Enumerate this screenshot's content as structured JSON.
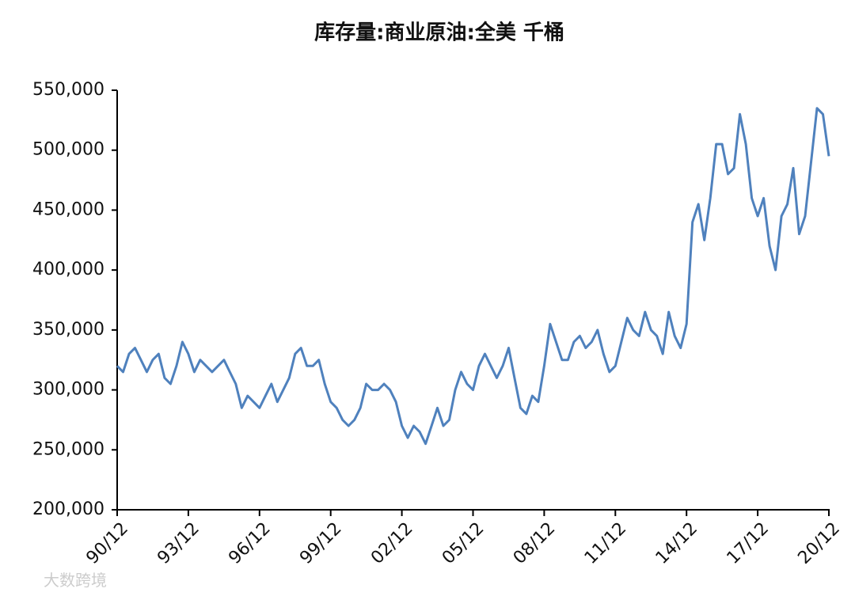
{
  "chart_data": {
    "type": "line",
    "title": "库存量:商业原油:全美 千桶",
    "watermark": "大数跨境",
    "x": [
      "90/12",
      "91/03",
      "91/06",
      "91/09",
      "91/12",
      "92/03",
      "92/06",
      "92/09",
      "92/12",
      "93/03",
      "93/06",
      "93/09",
      "93/12",
      "94/03",
      "94/06",
      "94/09",
      "94/12",
      "95/03",
      "95/06",
      "95/09",
      "95/12",
      "96/03",
      "96/06",
      "96/09",
      "96/12",
      "97/03",
      "97/06",
      "97/09",
      "97/12",
      "98/03",
      "98/06",
      "98/09",
      "98/12",
      "99/03",
      "99/06",
      "99/09",
      "99/12",
      "00/03",
      "00/06",
      "00/09",
      "00/12",
      "01/03",
      "01/06",
      "01/09",
      "01/12",
      "02/03",
      "02/06",
      "02/09",
      "02/12",
      "03/03",
      "03/06",
      "03/09",
      "03/12",
      "04/03",
      "04/06",
      "04/09",
      "04/12",
      "05/03",
      "05/06",
      "05/09",
      "05/12",
      "06/03",
      "06/06",
      "06/09",
      "06/12",
      "07/03",
      "07/06",
      "07/09",
      "07/12",
      "08/03",
      "08/06",
      "08/09",
      "08/12",
      "09/03",
      "09/06",
      "09/09",
      "09/12",
      "10/03",
      "10/06",
      "10/09",
      "10/12",
      "11/03",
      "11/06",
      "11/09",
      "11/12",
      "12/03",
      "12/06",
      "12/09",
      "12/12",
      "13/03",
      "13/06",
      "13/09",
      "13/12",
      "14/03",
      "14/06",
      "14/09",
      "14/12",
      "15/03",
      "15/06",
      "15/09",
      "15/12",
      "16/03",
      "16/06",
      "16/09",
      "16/12",
      "17/03",
      "17/06",
      "17/09",
      "17/12",
      "18/03",
      "18/06",
      "18/09",
      "18/12",
      "19/03",
      "19/06",
      "19/09",
      "19/12",
      "20/03",
      "20/06",
      "20/09",
      "20/12"
    ],
    "series": [
      {
        "name": "库存量:商业原油:全美",
        "color": "#4f81bd",
        "values": [
          320000,
          315000,
          330000,
          335000,
          325000,
          315000,
          325000,
          330000,
          310000,
          305000,
          320000,
          340000,
          330000,
          315000,
          325000,
          320000,
          315000,
          320000,
          325000,
          315000,
          305000,
          285000,
          295000,
          290000,
          285000,
          295000,
          305000,
          290000,
          300000,
          310000,
          330000,
          335000,
          320000,
          320000,
          325000,
          305000,
          290000,
          285000,
          275000,
          270000,
          275000,
          285000,
          305000,
          300000,
          300000,
          305000,
          300000,
          290000,
          270000,
          260000,
          270000,
          265000,
          255000,
          270000,
          285000,
          270000,
          275000,
          300000,
          315000,
          305000,
          300000,
          320000,
          330000,
          320000,
          310000,
          320000,
          335000,
          310000,
          285000,
          280000,
          295000,
          290000,
          320000,
          355000,
          340000,
          325000,
          325000,
          340000,
          345000,
          335000,
          340000,
          350000,
          330000,
          315000,
          320000,
          340000,
          360000,
          350000,
          345000,
          365000,
          350000,
          345000,
          330000,
          365000,
          345000,
          335000,
          355000,
          440000,
          455000,
          425000,
          460000,
          505000,
          505000,
          480000,
          485000,
          530000,
          505000,
          460000,
          445000,
          460000,
          420000,
          400000,
          445000,
          455000,
          485000,
          430000,
          445000,
          490000,
          535000,
          530000,
          495000
        ]
      }
    ],
    "ylim": [
      200000,
      550000
    ],
    "yticks": [
      {
        "value": 200000,
        "label": "200,000"
      },
      {
        "value": 250000,
        "label": "250,000"
      },
      {
        "value": 300000,
        "label": "300,000"
      },
      {
        "value": 350000,
        "label": "350,000"
      },
      {
        "value": 400000,
        "label": "400,000"
      },
      {
        "value": 450000,
        "label": "450,000"
      },
      {
        "value": 500000,
        "label": "500,000"
      },
      {
        "value": 550000,
        "label": "550,000"
      }
    ],
    "xticks": [
      "90/12",
      "93/12",
      "96/12",
      "99/12",
      "02/12",
      "05/12",
      "08/12",
      "11/12",
      "14/12",
      "17/12",
      "20/12"
    ]
  }
}
